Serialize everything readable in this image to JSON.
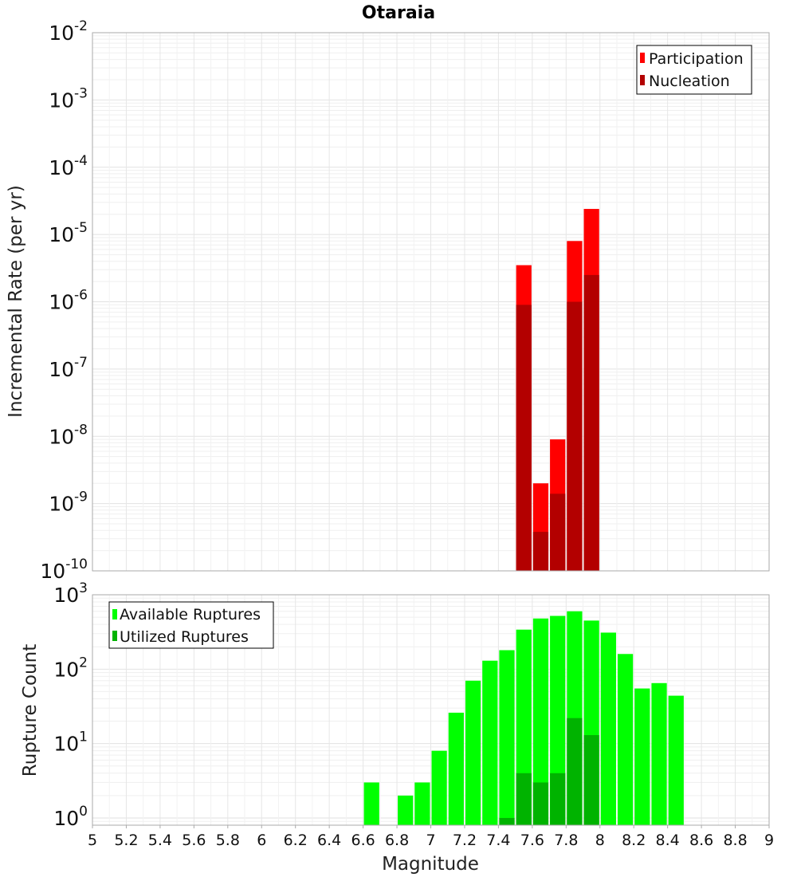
{
  "chart_data": [
    {
      "type": "bar",
      "title": "Otaraia",
      "ylabel": "Incremental Rate (per yr)",
      "xlabel": "",
      "scale": "log",
      "xlim": [
        5,
        9
      ],
      "ylim": [
        1e-10,
        0.01
      ],
      "legend_position": "top-right",
      "series": [
        {
          "name": "Participation",
          "color": "#ff0000",
          "x": [
            7.55,
            7.65,
            7.75,
            7.85,
            7.95
          ],
          "values": [
            3.5e-06,
            2e-09,
            9e-09,
            8e-06,
            2.4e-05
          ]
        },
        {
          "name": "Nucleation",
          "color": "#b30000",
          "x": [
            7.55,
            7.65,
            7.75,
            7.85,
            7.95
          ],
          "values": [
            9e-07,
            3.8e-10,
            1.4e-09,
            1e-06,
            2.5e-06
          ]
        }
      ]
    },
    {
      "type": "bar",
      "title": "",
      "ylabel": "Rupture Count",
      "xlabel": "Magnitude",
      "scale": "log",
      "xlim": [
        5,
        9
      ],
      "ylim": [
        0.8,
        1000
      ],
      "legend_position": "top-left",
      "xticks": [
        "5",
        "5.2",
        "5.4",
        "5.6",
        "5.8",
        "6",
        "6.2",
        "6.4",
        "6.6",
        "6.8",
        "7",
        "7.2",
        "7.4",
        "7.6",
        "7.8",
        "8",
        "8.2",
        "8.4",
        "8.6",
        "8.8",
        "9"
      ],
      "series": [
        {
          "name": "Available Ruptures",
          "color": "#00ff00",
          "x": [
            6.65,
            6.85,
            6.95,
            7.05,
            7.15,
            7.25,
            7.35,
            7.45,
            7.55,
            7.65,
            7.75,
            7.85,
            7.95,
            8.05,
            8.15,
            8.25,
            8.35,
            8.45
          ],
          "values": [
            3,
            2,
            3,
            8,
            26,
            70,
            130,
            180,
            340,
            480,
            520,
            600,
            450,
            310,
            160,
            55,
            65,
            44
          ]
        },
        {
          "name": "Utilized Ruptures",
          "color": "#00b300",
          "x": [
            7.45,
            7.55,
            7.65,
            7.75,
            7.85,
            7.95
          ],
          "values": [
            1,
            4,
            3,
            4,
            22,
            13
          ]
        }
      ]
    }
  ]
}
